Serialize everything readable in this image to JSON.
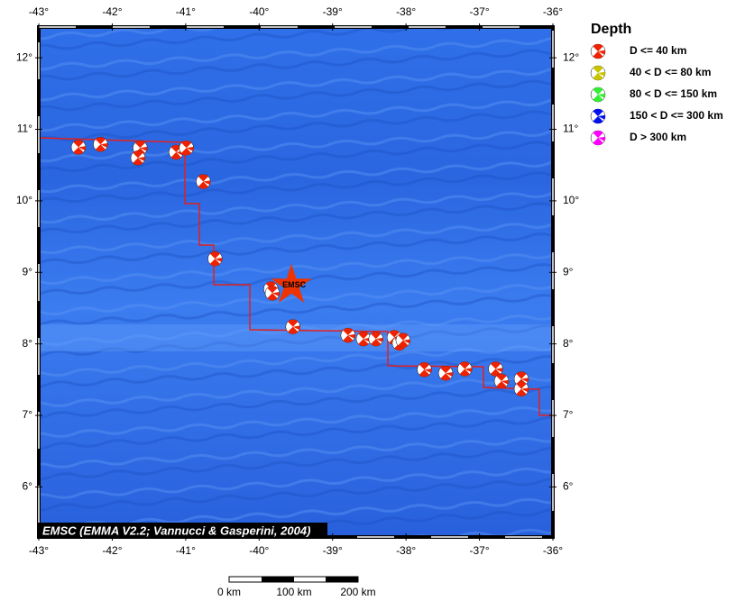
{
  "map": {
    "lon_ticks": [
      {
        "value": -43,
        "label": "-43°"
      },
      {
        "value": -42,
        "label": "-42°"
      },
      {
        "value": -41,
        "label": "-41°"
      },
      {
        "value": -40,
        "label": "-40°"
      },
      {
        "value": -39,
        "label": "-39°"
      },
      {
        "value": -38,
        "label": "-38°"
      },
      {
        "value": -37,
        "label": "-37°"
      },
      {
        "value": -36,
        "label": "-36°"
      }
    ],
    "lat_ticks": [
      {
        "value": 12,
        "label": "12°"
      },
      {
        "value": 11,
        "label": "11°"
      },
      {
        "value": 10,
        "label": "10°"
      },
      {
        "value": 9,
        "label": "9°"
      },
      {
        "value": 8,
        "label": "8°"
      },
      {
        "value": 7,
        "label": "7°"
      },
      {
        "value": 6,
        "label": "6°"
      }
    ],
    "xlim": [
      -43,
      -36
    ],
    "ylim": [
      5.3,
      12.43
    ],
    "events": [
      {
        "lon": -42.46,
        "lat": 10.75
      },
      {
        "lon": -42.16,
        "lat": 10.79
      },
      {
        "lon": -41.62,
        "lat": 10.74
      },
      {
        "lon": -41.65,
        "lat": 10.6
      },
      {
        "lon": -41.13,
        "lat": 10.68
      },
      {
        "lon": -40.99,
        "lat": 10.74
      },
      {
        "lon": -40.76,
        "lat": 10.27
      },
      {
        "lon": -40.6,
        "lat": 9.19
      },
      {
        "lon": -39.84,
        "lat": 8.77
      },
      {
        "lon": -39.82,
        "lat": 8.71
      },
      {
        "lon": -39.54,
        "lat": 8.24
      },
      {
        "lon": -38.79,
        "lat": 8.12
      },
      {
        "lon": -38.58,
        "lat": 8.07
      },
      {
        "lon": -38.41,
        "lat": 8.07
      },
      {
        "lon": -38.16,
        "lat": 8.09
      },
      {
        "lon": -38.09,
        "lat": 8.01
      },
      {
        "lon": -38.04,
        "lat": 8.05
      },
      {
        "lon": -37.75,
        "lat": 7.64
      },
      {
        "lon": -37.46,
        "lat": 7.59
      },
      {
        "lon": -37.2,
        "lat": 7.65
      },
      {
        "lon": -36.78,
        "lat": 7.65
      },
      {
        "lon": -36.7,
        "lat": 7.48
      },
      {
        "lon": -36.43,
        "lat": 7.51
      },
      {
        "lon": -36.43,
        "lat": 7.37
      }
    ],
    "event_color": "#ee2200",
    "star": {
      "lon": -39.56,
      "lat": 8.82,
      "label": "EMSC",
      "color": "#ee3300"
    },
    "credit": "EMSC (EMMA V2.2; Vannucci & Gasperini, 2004)"
  },
  "legend": {
    "title": "Depth",
    "items": [
      {
        "label": "D <= 40 km",
        "color": "#ee2200"
      },
      {
        "label": "40 < D <= 80 km",
        "color": "#c8c400"
      },
      {
        "label": "80 < D <= 150 km",
        "color": "#33ee33"
      },
      {
        "label": "150 < D <= 300 km",
        "color": "#0010ee"
      },
      {
        "label": "D > 300 km",
        "color": "#ff00ff"
      }
    ]
  },
  "scale_bar": {
    "labels": [
      "0 km",
      "100 km",
      "200 km"
    ]
  }
}
